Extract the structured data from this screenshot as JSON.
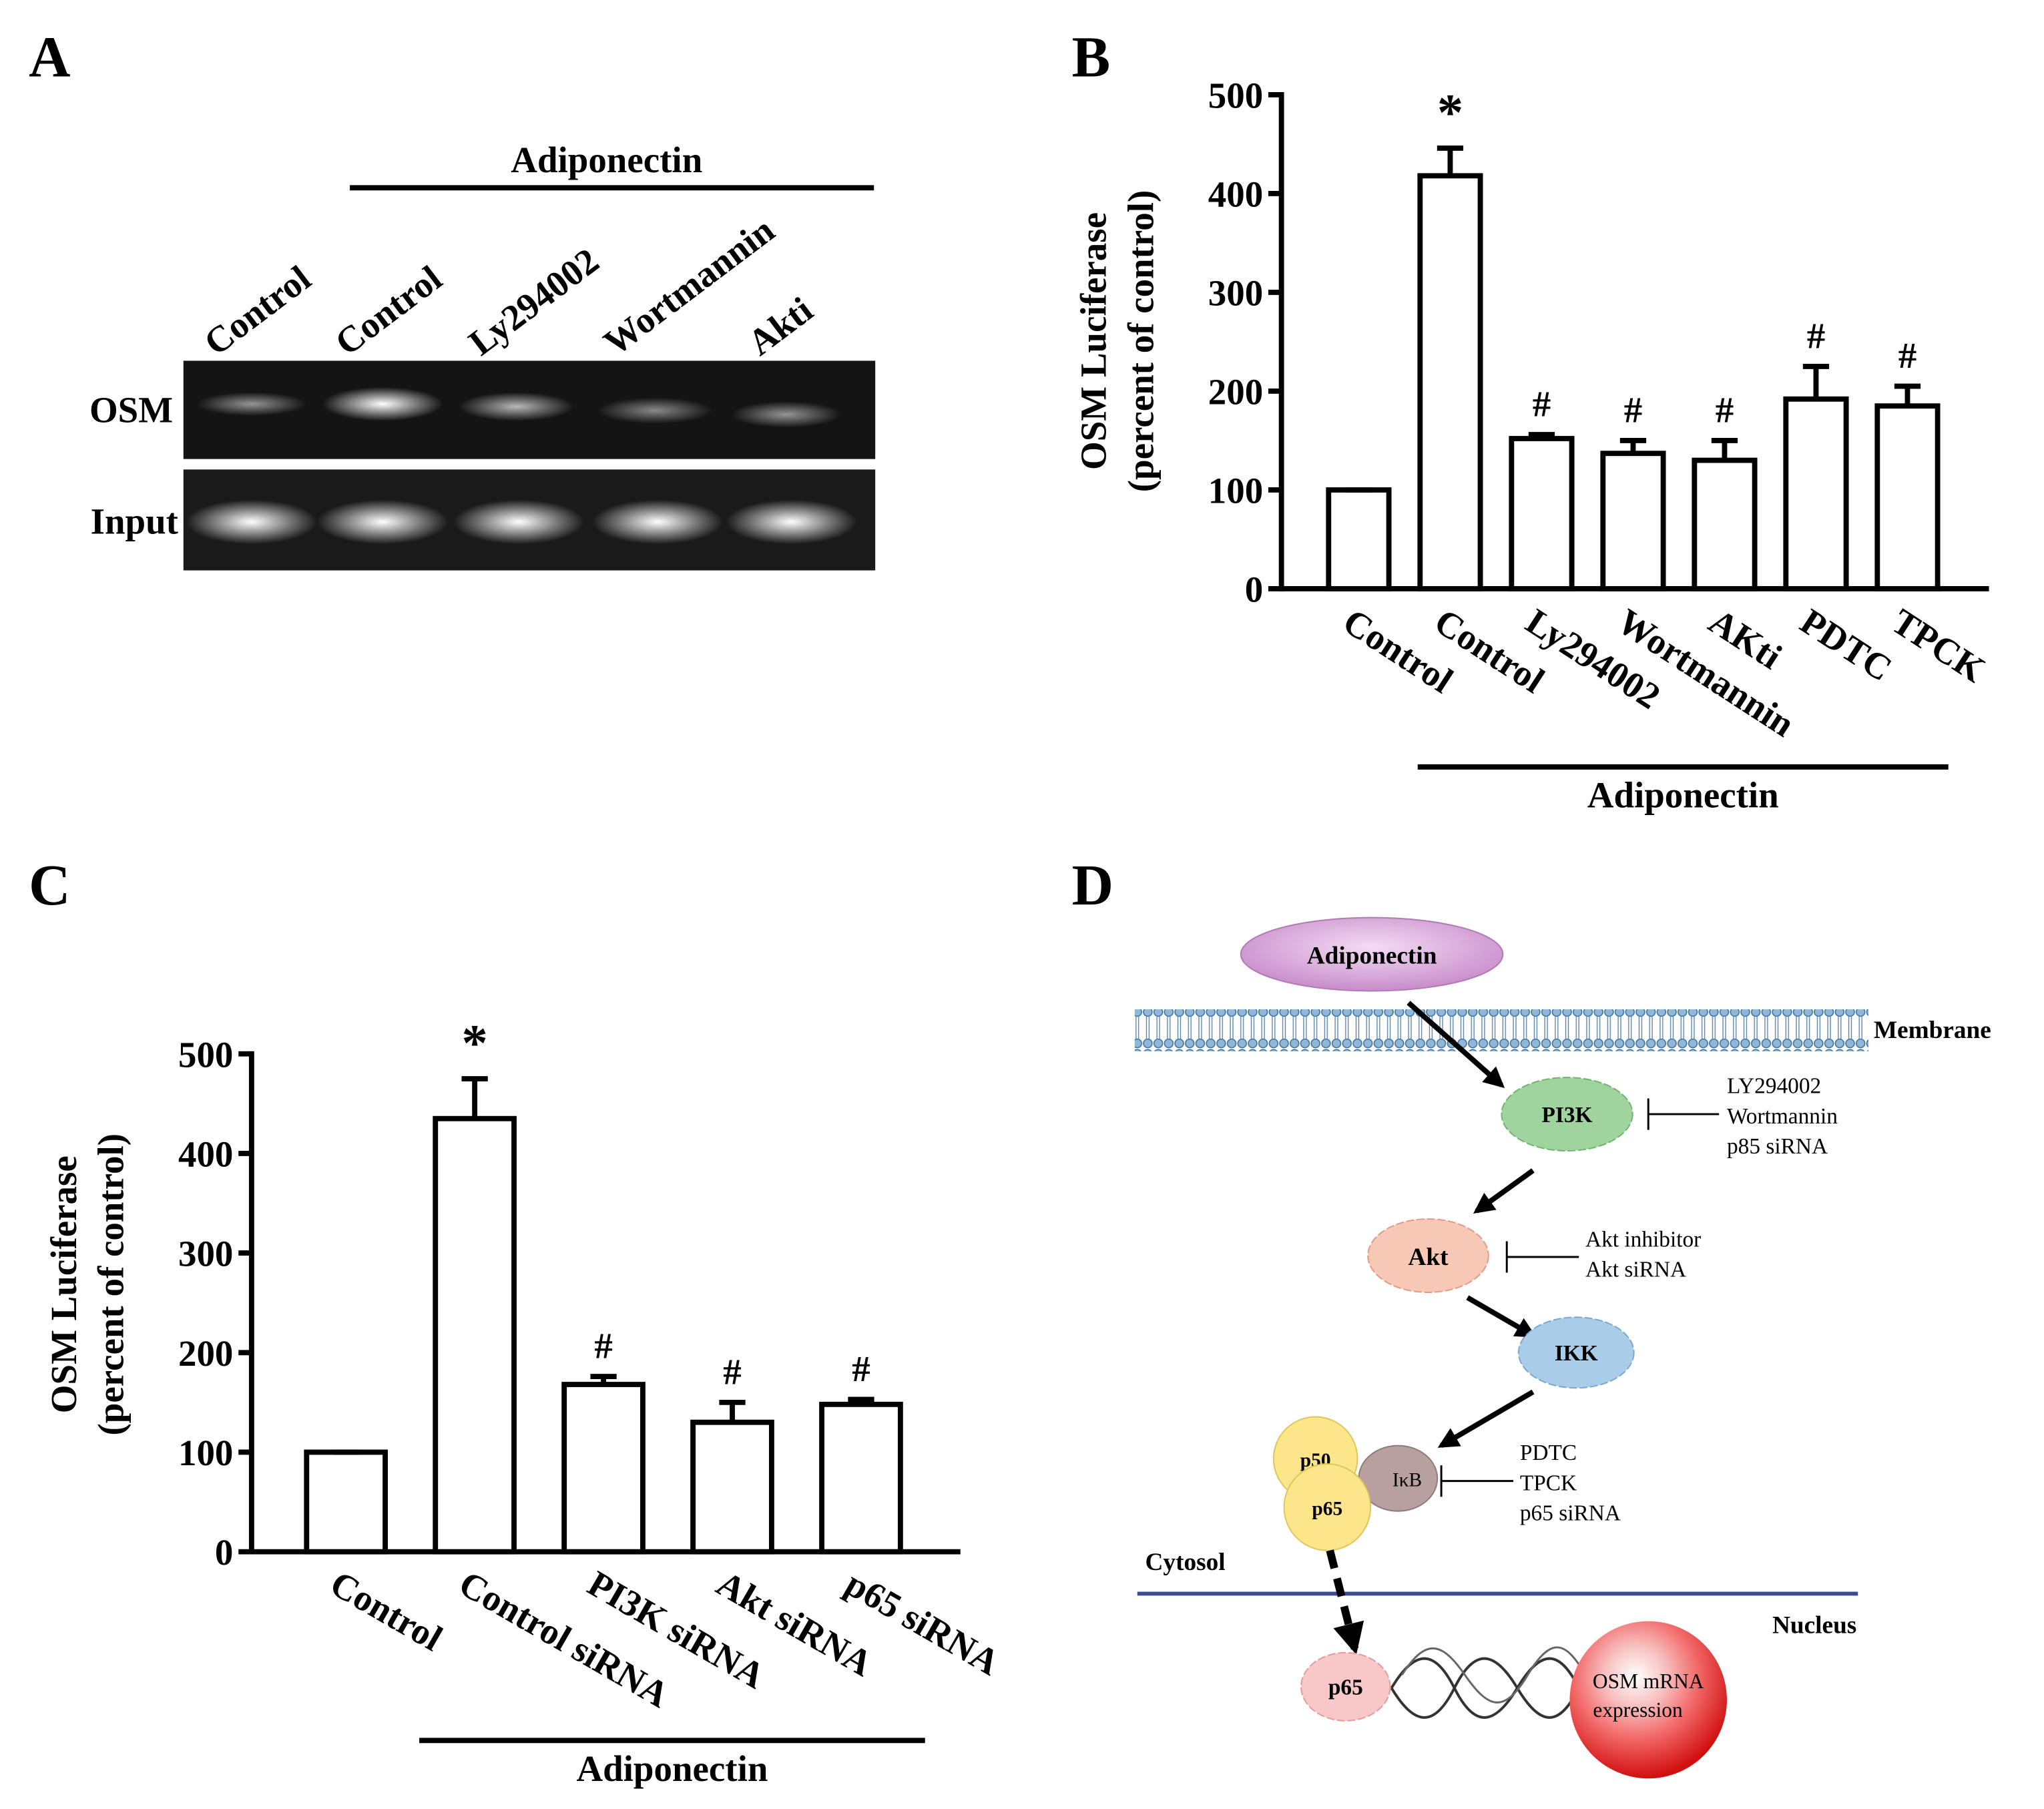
{
  "panel_labels": [
    "A",
    "B",
    "C",
    "D"
  ],
  "gel": {
    "group_label": "Adiponectin",
    "lanes": [
      "Control",
      "Control",
      "Ly294002",
      "Wortmannin",
      "Akti"
    ],
    "rows": [
      "OSM",
      "Input"
    ]
  },
  "chart_data": [
    {
      "type": "bar",
      "ylabel": [
        "OSM Luciferase",
        "(percent of control)"
      ],
      "categories": [
        "Control",
        "Control",
        "Ly294002",
        "Wortmannin",
        "AKti",
        "PDTC",
        "TPCK"
      ],
      "values": [
        100,
        418,
        152,
        137,
        130,
        192,
        185
      ],
      "errors": [
        0,
        28,
        4,
        13,
        20,
        33,
        20
      ],
      "annotations": [
        null,
        "*",
        "#",
        "#",
        "#",
        "#",
        "#"
      ],
      "group_label": "Adiponectin",
      "color": "#ffffff",
      "ylim": [
        0,
        500
      ],
      "yticks": [
        0,
        100,
        200,
        300,
        400,
        500
      ]
    },
    {
      "type": "bar",
      "ylabel": [
        "OSM Luciferase",
        "(percent of control)"
      ],
      "categories": [
        "Control",
        "Control siRNA",
        "PI3K siRNA",
        "Akt siRNA",
        "p65 siRNA"
      ],
      "values": [
        100,
        435,
        168,
        130,
        148
      ],
      "errors": [
        0,
        40,
        8,
        20,
        5
      ],
      "annotations": [
        null,
        "*",
        "#",
        "#",
        "#"
      ],
      "group_label": "Adiponectin",
      "color": "#ffffff",
      "ylim": [
        0,
        500
      ],
      "yticks": [
        0,
        100,
        200,
        300,
        400,
        500
      ]
    }
  ],
  "diagram": {
    "ligand": "Adiponectin",
    "membrane": "Membrane",
    "pi3k": {
      "label": "PI3K",
      "inhibitors": [
        "LY294002",
        "Wortmannin",
        "p85 siRNA"
      ]
    },
    "akt": {
      "label": "Akt",
      "inhibitors": [
        "Akt inhibitor",
        "Akt siRNA"
      ]
    },
    "ikk": {
      "label": "IKK"
    },
    "nfkb": {
      "p50": "p50",
      "ikb": "IκB",
      "p65": "p65",
      "inhibitors": [
        "PDTC",
        "TPCK",
        "p65 siRNA"
      ]
    },
    "cytosol": "Cytosol",
    "nucleus": "Nucleus",
    "nuclear_p65": "p65",
    "output": [
      "OSM mRNA",
      "expression"
    ]
  }
}
